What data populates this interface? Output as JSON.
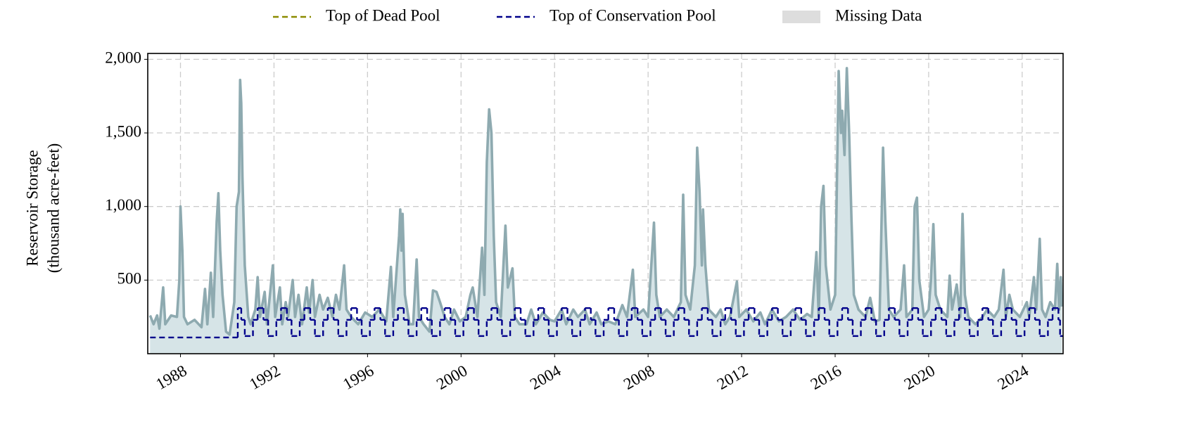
{
  "chart_data": {
    "type": "line",
    "ylabel": [
      "Reservoir Storage",
      "(thousand acre-feet)"
    ],
    "xlim": [
      1986.6,
      2025.75
    ],
    "xticks": [
      1988,
      1992,
      1996,
      2000,
      2004,
      2008,
      2012,
      2016,
      2020,
      2024
    ],
    "ylim": [
      0,
      2040
    ],
    "yticks": [
      {
        "value": 500,
        "label": "500"
      },
      {
        "value": 1000,
        "label": "1,000"
      },
      {
        "value": 1500,
        "label": "1,500"
      },
      {
        "value": 2000,
        "label": "2,000"
      }
    ],
    "grid": true,
    "series": [
      {
        "color": "#8eaab0",
        "fill": "#d6e4e7",
        "x": [
          1986.7,
          1986.85,
          1987.0,
          1987.1,
          1987.26,
          1987.35,
          1987.6,
          1987.85,
          1987.95,
          1988.0,
          1988.08,
          1988.15,
          1988.3,
          1988.6,
          1988.9,
          1989.05,
          1989.15,
          1989.3,
          1989.4,
          1989.55,
          1989.62,
          1989.7,
          1989.8,
          1989.95,
          1990.1,
          1990.3,
          1990.4,
          1990.5,
          1990.55,
          1990.6,
          1990.65,
          1990.75,
          1990.9,
          1991.0,
          1991.2,
          1991.3,
          1991.4,
          1991.6,
          1991.7,
          1991.95,
          1992.05,
          1992.25,
          1992.35,
          1992.5,
          1992.6,
          1992.8,
          1992.9,
          1993.05,
          1993.2,
          1993.4,
          1993.5,
          1993.65,
          1993.75,
          1993.95,
          1994.1,
          1994.3,
          1994.5,
          1994.65,
          1994.8,
          1995.0,
          1995.1,
          1995.3,
          1995.6,
          1995.9,
          1996.2,
          1996.5,
          1996.8,
          1997.0,
          1997.1,
          1997.35,
          1997.4,
          1997.45,
          1997.5,
          1997.6,
          1997.8,
          1997.95,
          1998.1,
          1998.2,
          1998.4,
          1998.65,
          1998.8,
          1998.95,
          1999.1,
          1999.3,
          1999.5,
          1999.7,
          1999.95,
          2000.2,
          2000.4,
          2000.5,
          2000.7,
          2000.9,
          2001.0,
          2001.1,
          2001.2,
          2001.3,
          2001.4,
          2001.5,
          2001.7,
          2001.9,
          2002.0,
          2002.2,
          2002.3,
          2002.5,
          2002.8,
          2003.0,
          2003.2,
          2003.5,
          2003.8,
          2004.0,
          2004.3,
          2004.5,
          2004.8,
          2005.0,
          2005.3,
          2005.5,
          2005.8,
          2006.0,
          2006.3,
          2006.6,
          2006.9,
          2007.1,
          2007.35,
          2007.45,
          2007.8,
          2008.0,
          2008.25,
          2008.35,
          2008.5,
          2008.8,
          2009.1,
          2009.4,
          2009.5,
          2009.6,
          2009.8,
          2010.0,
          2010.1,
          2010.2,
          2010.3,
          2010.35,
          2010.45,
          2010.6,
          2010.9,
          2011.1,
          2011.3,
          2011.5,
          2011.8,
          2011.9,
          2012.2,
          2012.5,
          2012.8,
          2013.0,
          2013.3,
          2013.6,
          2013.9,
          2014.2,
          2014.5,
          2014.8,
          2015.0,
          2015.2,
          2015.3,
          2015.4,
          2015.5,
          2015.6,
          2015.8,
          2016.0,
          2016.15,
          2016.25,
          2016.3,
          2016.4,
          2016.5,
          2016.6,
          2016.7,
          2016.8,
          2017.0,
          2017.3,
          2017.5,
          2017.7,
          2017.9,
          2018.05,
          2018.15,
          2018.3,
          2018.5,
          2018.8,
          2018.95,
          2019.05,
          2019.3,
          2019.4,
          2019.5,
          2019.6,
          2019.8,
          2020.0,
          2020.1,
          2020.2,
          2020.3,
          2020.5,
          2020.8,
          2020.9,
          2021.0,
          2021.2,
          2021.35,
          2021.45,
          2021.55,
          2021.7,
          2022.0,
          2022.3,
          2022.5,
          2022.8,
          2023.0,
          2023.2,
          2023.3,
          2023.45,
          2023.6,
          2023.9,
          2024.2,
          2024.3,
          2024.5,
          2024.6,
          2024.75,
          2024.85,
          2025.0,
          2025.2,
          2025.4,
          2025.5,
          2025.58,
          2025.65,
          2025.7
        ],
        "values": [
          260,
          200,
          260,
          170,
          450,
          200,
          260,
          250,
          500,
          1000,
          700,
          250,
          200,
          230,
          180,
          440,
          200,
          550,
          250,
          900,
          1090,
          700,
          400,
          150,
          130,
          350,
          1000,
          1100,
          1860,
          1700,
          1200,
          600,
          250,
          200,
          300,
          520,
          250,
          420,
          200,
          600,
          250,
          450,
          200,
          350,
          250,
          500,
          250,
          400,
          200,
          450,
          280,
          500,
          250,
          400,
          300,
          380,
          250,
          400,
          300,
          600,
          300,
          250,
          200,
          280,
          250,
          300,
          220,
          590,
          250,
          800,
          980,
          700,
          950,
          400,
          200,
          200,
          640,
          250,
          200,
          150,
          430,
          420,
          350,
          250,
          200,
          300,
          220,
          250,
          400,
          450,
          250,
          720,
          400,
          1300,
          1660,
          1500,
          800,
          350,
          250,
          870,
          450,
          580,
          250,
          200,
          200,
          300,
          200,
          280,
          230,
          220,
          300,
          200,
          300,
          250,
          300,
          200,
          280,
          200,
          220,
          200,
          330,
          250,
          570,
          250,
          300,
          250,
          890,
          400,
          250,
          300,
          250,
          350,
          1080,
          400,
          300,
          600,
          1400,
          1100,
          600,
          980,
          600,
          300,
          250,
          300,
          200,
          250,
          490,
          250,
          300,
          220,
          280,
          200,
          300,
          220,
          250,
          300,
          230,
          270,
          250,
          690,
          250,
          1000,
          1140,
          600,
          300,
          400,
          1920,
          1500,
          1650,
          1350,
          1940,
          1500,
          900,
          400,
          300,
          250,
          380,
          220,
          230,
          1400,
          900,
          300,
          250,
          300,
          600,
          250,
          300,
          1000,
          1060,
          500,
          250,
          300,
          500,
          880,
          400,
          300,
          250,
          530,
          300,
          470,
          250,
          950,
          400,
          250,
          200,
          250,
          300,
          250,
          300,
          570,
          250,
          400,
          300,
          250,
          350,
          250,
          520,
          300,
          780,
          300,
          250,
          350,
          300,
          610,
          300,
          520,
          320
        ]
      },
      {
        "name": "Top of Conservation Pool",
        "color": "#00008b",
        "dashed": true,
        "step": true,
        "x": [
          1986.7,
          1990.45,
          1990.6,
          1990.75,
          1991.1,
          1991.3,
          1991.55,
          1991.75,
          1992.1,
          1992.3,
          1992.55,
          1992.75,
          1993.1,
          1993.3,
          1993.55,
          1993.75,
          1994.1,
          1994.3,
          1994.55,
          1994.75,
          1995.1,
          1995.3,
          1995.55,
          1995.75,
          1996.1,
          1996.3,
          1996.55,
          1996.75,
          1997.1,
          1997.3,
          1997.55,
          1997.75,
          1998.1,
          1998.3,
          1998.55,
          1998.75,
          1999.1,
          1999.3,
          1999.55,
          1999.75,
          2000.1,
          2000.3,
          2000.55,
          2000.75,
          2001.1,
          2001.3,
          2001.55,
          2001.75,
          2002.1,
          2002.3,
          2002.55,
          2002.75,
          2003.1,
          2003.3,
          2003.55,
          2003.75,
          2004.1,
          2004.3,
          2004.55,
          2004.75,
          2005.1,
          2005.3,
          2005.55,
          2005.75,
          2006.1,
          2006.3,
          2006.55,
          2006.75,
          2007.1,
          2007.3,
          2007.55,
          2007.75,
          2008.1,
          2008.3,
          2008.55,
          2008.75,
          2009.1,
          2009.3,
          2009.55,
          2009.75,
          2010.1,
          2010.3,
          2010.55,
          2010.75,
          2011.1,
          2011.3,
          2011.55,
          2011.75,
          2012.1,
          2012.3,
          2012.55,
          2012.75,
          2013.1,
          2013.3,
          2013.55,
          2013.75,
          2014.1,
          2014.3,
          2014.55,
          2014.75,
          2015.1,
          2015.3,
          2015.55,
          2015.75,
          2016.1,
          2016.3,
          2016.55,
          2016.75,
          2017.1,
          2017.3,
          2017.55,
          2017.75,
          2018.1,
          2018.3,
          2018.55,
          2018.75,
          2019.1,
          2019.3,
          2019.55,
          2019.75,
          2020.1,
          2020.3,
          2020.55,
          2020.75,
          2021.1,
          2021.3,
          2021.55,
          2021.75,
          2022.1,
          2022.3,
          2022.55,
          2022.75,
          2023.1,
          2023.3,
          2023.55,
          2023.75,
          2024.1,
          2024.3,
          2024.55,
          2024.75,
          2025.1,
          2025.3,
          2025.55,
          2025.62
        ],
        "values": [
          110,
          310,
          230,
          120,
          230,
          310,
          230,
          120,
          230,
          310,
          230,
          120,
          230,
          310,
          230,
          120,
          230,
          310,
          230,
          120,
          230,
          310,
          230,
          120,
          230,
          310,
          230,
          120,
          230,
          310,
          230,
          120,
          230,
          310,
          230,
          120,
          230,
          310,
          230,
          120,
          230,
          310,
          230,
          120,
          230,
          310,
          230,
          120,
          230,
          310,
          230,
          120,
          230,
          310,
          230,
          120,
          230,
          310,
          230,
          120,
          230,
          310,
          230,
          120,
          230,
          310,
          230,
          120,
          230,
          310,
          230,
          120,
          230,
          310,
          230,
          120,
          230,
          310,
          230,
          120,
          230,
          310,
          230,
          120,
          230,
          310,
          230,
          120,
          230,
          310,
          230,
          120,
          230,
          310,
          230,
          120,
          230,
          310,
          230,
          120,
          230,
          310,
          230,
          120,
          230,
          310,
          230,
          120,
          230,
          310,
          230,
          120,
          230,
          310,
          230,
          120,
          230,
          310,
          230,
          120,
          230,
          310,
          230,
          120,
          230,
          310,
          230,
          120,
          230,
          310,
          230,
          120,
          230,
          310,
          230,
          120,
          230,
          310,
          230,
          120,
          230,
          310,
          230,
          120
        ]
      }
    ],
    "extra_legend": [
      {
        "name": "Top of Dead Pool",
        "color": "#8b8b00",
        "style": "dashed"
      },
      {
        "name": "Missing Data",
        "color": "#dddddd",
        "style": "patch"
      }
    ]
  }
}
